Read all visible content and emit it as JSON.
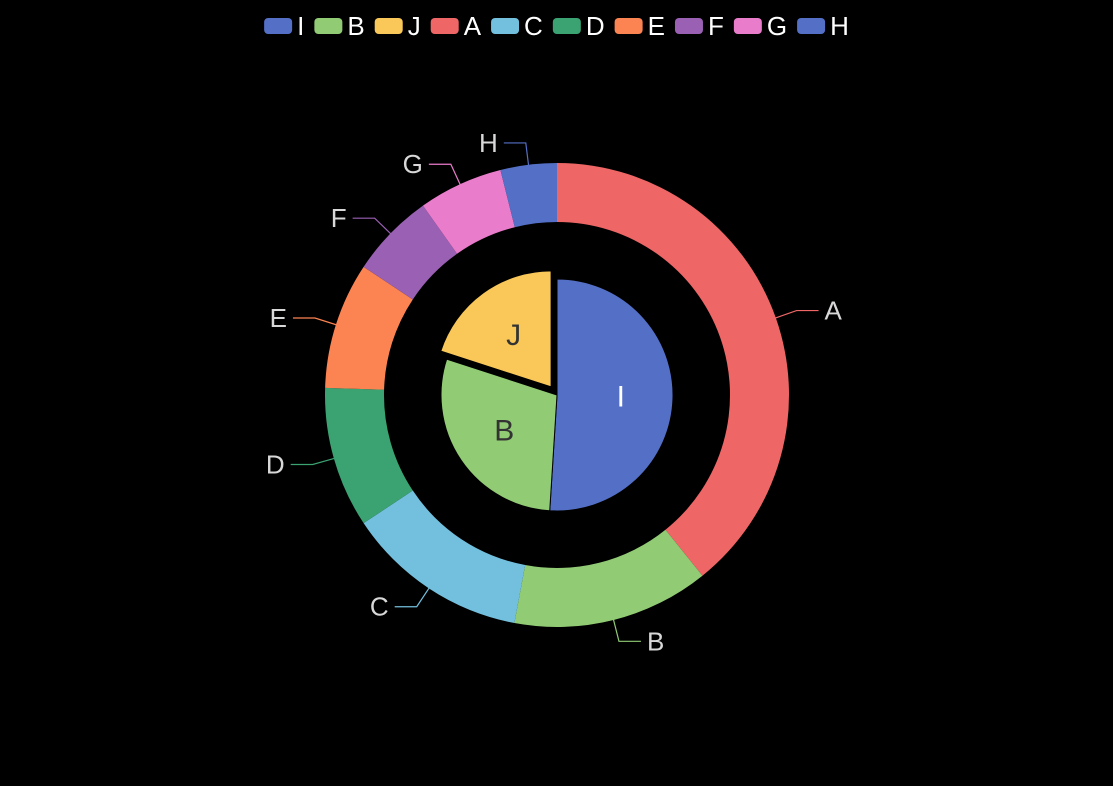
{
  "chart_data": {
    "type": "pie",
    "subtype": "nested-donut",
    "legend": {
      "placement": "top-center",
      "items": [
        {
          "label": "I",
          "color": "#5470c6"
        },
        {
          "label": "B",
          "color": "#91cc75"
        },
        {
          "label": "J",
          "color": "#fac858"
        },
        {
          "label": "A",
          "color": "#ee6666"
        },
        {
          "label": "C",
          "color": "#73c0de"
        },
        {
          "label": "D",
          "color": "#3ba272"
        },
        {
          "label": "E",
          "color": "#fc8452"
        },
        {
          "label": "F",
          "color": "#9a60b4"
        },
        {
          "label": "G",
          "color": "#ea7ccc"
        },
        {
          "label": "H",
          "color": "#5470c6"
        }
      ]
    },
    "inner_series": {
      "name": "",
      "slices": [
        {
          "label": "I",
          "value": 51,
          "color": "#5470c6",
          "label_color": "#ffffff",
          "offset": false
        },
        {
          "label": "B",
          "value": 29,
          "color": "#91cc75",
          "label_color": "#333333",
          "offset": false
        },
        {
          "label": "J",
          "value": 20,
          "color": "#fac858",
          "label_color": "#333333",
          "offset": true
        }
      ]
    },
    "outer_series": {
      "name": "",
      "slices": [
        {
          "label": "A",
          "value": 40,
          "color": "#ee6666"
        },
        {
          "label": "B",
          "value": 14,
          "color": "#91cc75"
        },
        {
          "label": "C",
          "value": 13,
          "color": "#73c0de"
        },
        {
          "label": "D",
          "value": 10,
          "color": "#3ba272"
        },
        {
          "label": "E",
          "value": 9,
          "color": "#fc8452"
        },
        {
          "label": "F",
          "value": 6,
          "color": "#9a60b4"
        },
        {
          "label": "G",
          "value": 6,
          "color": "#ea7ccc"
        },
        {
          "label": "H",
          "value": 4,
          "color": "#5470c6"
        }
      ]
    }
  }
}
